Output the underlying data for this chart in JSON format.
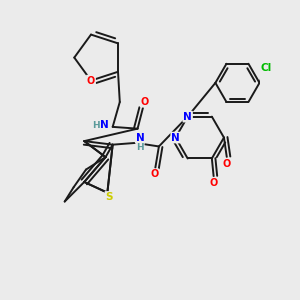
{
  "background_color": "#ebebeb",
  "bond_color": "#1a1a1a",
  "atom_colors": {
    "O": "#ff0000",
    "N": "#0000ff",
    "S": "#cccc00",
    "Cl": "#00bb00",
    "C": "#1a1a1a",
    "H": "#5a9a9a"
  },
  "figsize": [
    3.0,
    3.0
  ],
  "dpi": 100
}
